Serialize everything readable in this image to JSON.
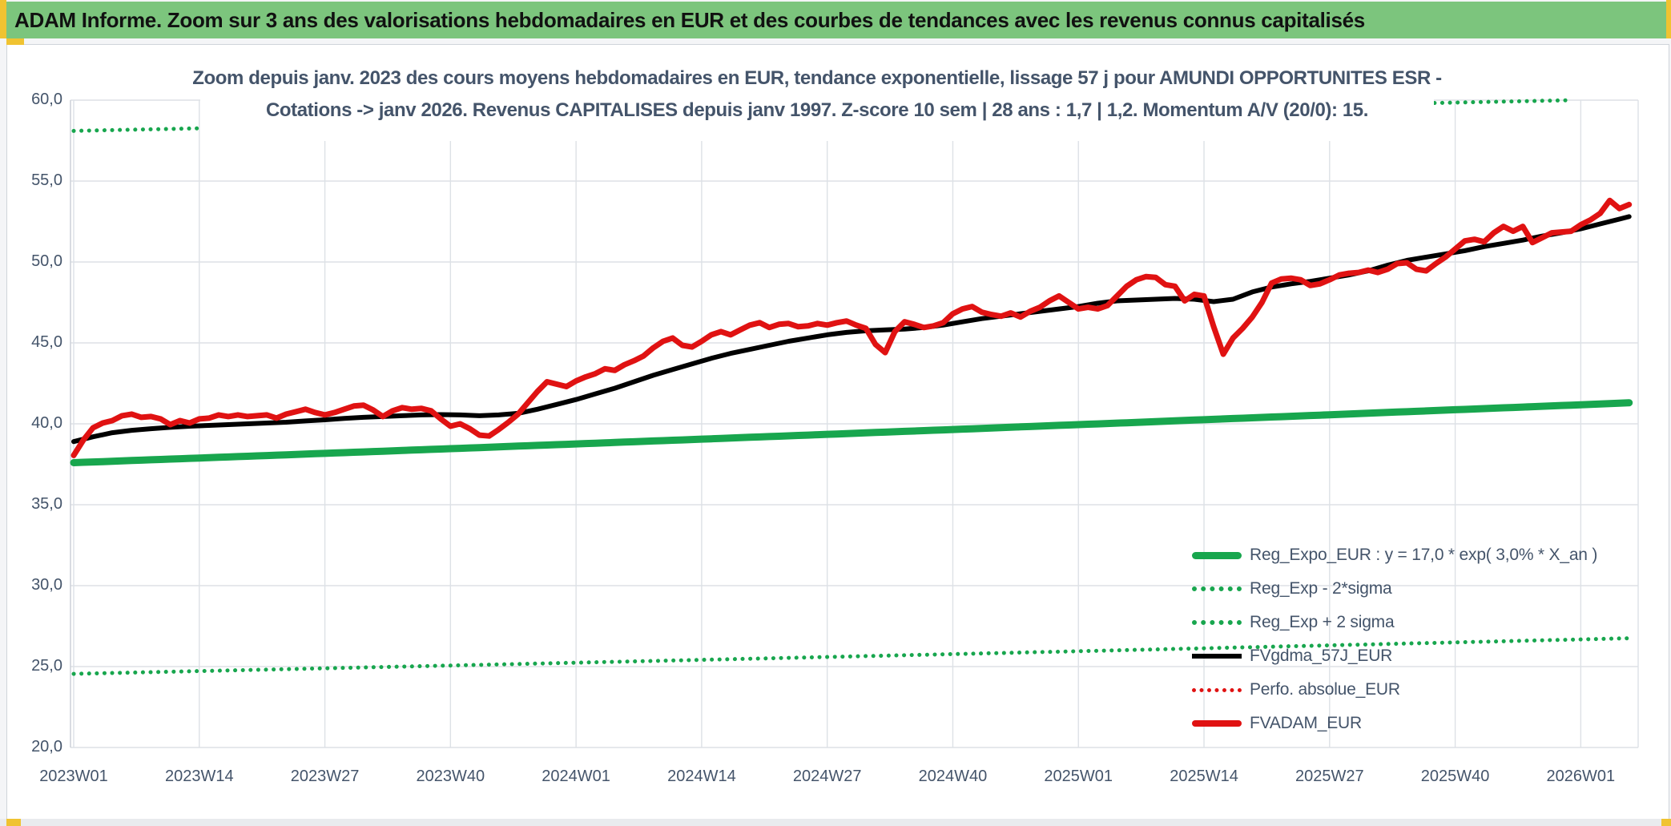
{
  "header": {
    "title": "ADAM Informe. Zoom sur 3 ans des valorisations hebdomadaires en EUR et des courbes de tendances avec les revenus connus capitalisés"
  },
  "chart_data": {
    "type": "line",
    "title_line1": "Zoom depuis janv. 2023 des cours moyens hebdomadaires en EUR, tendance exponentielle, lissage 57 j pour AMUNDI OPPORTUNITES ESR -",
    "title_line2": "Cotations -> janv 2026. Revenus CAPITALISES depuis janv 1997. Z-score 10 sem | 28 ans : 1,7 | 1,2. Momentum A/V (20/0): 15.",
    "ylabel": "",
    "xlabel": "",
    "ylim": [
      20,
      60
    ],
    "grid": true,
    "legend_position": "right-inside",
    "y_ticks": [
      "60,0",
      "55,0",
      "50,0",
      "45,0",
      "40,0",
      "35,0",
      "30,0",
      "25,0",
      "20,0"
    ],
    "y_tick_values": [
      60,
      55,
      50,
      45,
      40,
      35,
      30,
      25,
      20
    ],
    "x_ticks": [
      "2023W01",
      "2023W14",
      "2023W27",
      "2023W40",
      "2024W01",
      "2024W14",
      "2024W27",
      "2024W40",
      "2025W01",
      "2025W14",
      "2025W27",
      "2025W40",
      "2026W01"
    ],
    "x_tick_weeks": [
      0,
      13,
      26,
      39,
      52,
      65,
      78,
      91,
      104,
      117,
      130,
      143,
      156
    ],
    "weeks_total": 161,
    "colors": {
      "green": "#18a64e",
      "red": "#e01212",
      "black": "#000000",
      "gridline": "#dde1e6",
      "text": "#44546a"
    },
    "legend": [
      {
        "label": "Reg_Expo_EUR : y = 17,0 * exp( 3,0% *  X_an )",
        "marker": "green-solid"
      },
      {
        "label": "Reg_Exp - 2*sigma",
        "marker": "green-dotted"
      },
      {
        "label": "Reg_Exp + 2 sigma",
        "marker": "green-dotted"
      },
      {
        "label": "FVgdma_57J_EUR",
        "marker": "black-solid"
      },
      {
        "label": "Perfo. absolue_EUR",
        "marker": "red-dotted"
      },
      {
        "label": "FVADAM_EUR",
        "marker": "red-solid"
      }
    ],
    "series": {
      "reg_expo_eur": {
        "name": "Reg_Expo_EUR",
        "style": "solid",
        "color": "#18a64e",
        "start": 37.6,
        "end": 41.3,
        "growth_pct_per_year": 3.0
      },
      "reg_exp_minus_2sigma": {
        "name": "Reg_Exp - 2*sigma",
        "style": "dotted",
        "color": "#18a64e",
        "start": 24.55,
        "end": 26.75
      },
      "reg_exp_plus_2sigma": {
        "name": "Reg_Exp + 2 sigma",
        "style": "dotted",
        "color": "#18a64e",
        "start": 58.1,
        "end": 60.07,
        "clip_max": 60.0
      },
      "fvgdma_57j_eur": {
        "name": "FVgdma_57J_EUR",
        "style": "solid",
        "color": "#000000",
        "points": [
          [
            0,
            38.9
          ],
          [
            2,
            39.2
          ],
          [
            4,
            39.45
          ],
          [
            6,
            39.6
          ],
          [
            8,
            39.7
          ],
          [
            10,
            39.78
          ],
          [
            12,
            39.85
          ],
          [
            14,
            39.9
          ],
          [
            16,
            39.95
          ],
          [
            18,
            40.0
          ],
          [
            20,
            40.05
          ],
          [
            22,
            40.1
          ],
          [
            24,
            40.18
          ],
          [
            26,
            40.25
          ],
          [
            28,
            40.33
          ],
          [
            30,
            40.4
          ],
          [
            32,
            40.45
          ],
          [
            34,
            40.5
          ],
          [
            36,
            40.55
          ],
          [
            38,
            40.57
          ],
          [
            40,
            40.55
          ],
          [
            42,
            40.5
          ],
          [
            44,
            40.55
          ],
          [
            46,
            40.65
          ],
          [
            48,
            40.9
          ],
          [
            50,
            41.2
          ],
          [
            52,
            41.5
          ],
          [
            54,
            41.85
          ],
          [
            56,
            42.2
          ],
          [
            58,
            42.6
          ],
          [
            60,
            43.0
          ],
          [
            62,
            43.35
          ],
          [
            64,
            43.7
          ],
          [
            66,
            44.05
          ],
          [
            68,
            44.35
          ],
          [
            70,
            44.6
          ],
          [
            72,
            44.85
          ],
          [
            74,
            45.1
          ],
          [
            76,
            45.3
          ],
          [
            78,
            45.5
          ],
          [
            80,
            45.65
          ],
          [
            82,
            45.75
          ],
          [
            84,
            45.8
          ],
          [
            86,
            45.85
          ],
          [
            88,
            45.95
          ],
          [
            90,
            46.1
          ],
          [
            92,
            46.3
          ],
          [
            94,
            46.5
          ],
          [
            96,
            46.65
          ],
          [
            98,
            46.8
          ],
          [
            100,
            46.95
          ],
          [
            102,
            47.1
          ],
          [
            104,
            47.25
          ],
          [
            106,
            47.45
          ],
          [
            108,
            47.6
          ],
          [
            110,
            47.65
          ],
          [
            112,
            47.7
          ],
          [
            114,
            47.75
          ],
          [
            116,
            47.7
          ],
          [
            118,
            47.55
          ],
          [
            120,
            47.7
          ],
          [
            122,
            48.15
          ],
          [
            124,
            48.45
          ],
          [
            126,
            48.65
          ],
          [
            128,
            48.8
          ],
          [
            130,
            49.0
          ],
          [
            132,
            49.2
          ],
          [
            134,
            49.45
          ],
          [
            136,
            49.8
          ],
          [
            138,
            50.1
          ],
          [
            140,
            50.3
          ],
          [
            142,
            50.5
          ],
          [
            144,
            50.7
          ],
          [
            146,
            50.95
          ],
          [
            148,
            51.15
          ],
          [
            150,
            51.35
          ],
          [
            152,
            51.6
          ],
          [
            154,
            51.8
          ],
          [
            156,
            52.05
          ],
          [
            158,
            52.35
          ],
          [
            160,
            52.65
          ],
          [
            161,
            52.8
          ]
        ]
      },
      "fvadam_eur": {
        "name": "FVADAM_EUR",
        "style": "solid",
        "color": "#e01212",
        "values": [
          38.05,
          39.0,
          39.75,
          40.05,
          40.2,
          40.5,
          40.6,
          40.4,
          40.45,
          40.3,
          39.95,
          40.2,
          40.05,
          40.3,
          40.35,
          40.55,
          40.45,
          40.55,
          40.45,
          40.5,
          40.55,
          40.35,
          40.6,
          40.75,
          40.9,
          40.7,
          40.55,
          40.7,
          40.9,
          41.1,
          41.15,
          40.85,
          40.45,
          40.8,
          41.0,
          40.9,
          40.95,
          40.8,
          40.3,
          39.85,
          40.0,
          39.7,
          39.3,
          39.25,
          39.65,
          40.1,
          40.6,
          41.3,
          42.0,
          42.6,
          42.45,
          42.3,
          42.65,
          42.9,
          43.1,
          43.4,
          43.3,
          43.65,
          43.9,
          44.2,
          44.7,
          45.1,
          45.3,
          44.85,
          44.75,
          45.1,
          45.5,
          45.7,
          45.5,
          45.8,
          46.1,
          46.25,
          45.95,
          46.15,
          46.2,
          46.0,
          46.05,
          46.2,
          46.1,
          46.25,
          46.35,
          46.1,
          45.9,
          44.9,
          44.4,
          45.7,
          46.3,
          46.15,
          45.95,
          46.05,
          46.25,
          46.8,
          47.1,
          47.25,
          46.9,
          46.75,
          46.65,
          46.85,
          46.6,
          46.95,
          47.2,
          47.6,
          47.9,
          47.5,
          47.1,
          47.2,
          47.1,
          47.3,
          47.9,
          48.5,
          48.9,
          49.1,
          49.05,
          48.6,
          48.5,
          47.6,
          48.0,
          47.9,
          46.0,
          44.3,
          45.3,
          45.9,
          46.6,
          47.5,
          48.7,
          48.95,
          49.0,
          48.9,
          48.55,
          48.65,
          48.9,
          49.2,
          49.3,
          49.35,
          49.5,
          49.35,
          49.55,
          49.9,
          49.95,
          49.55,
          49.45,
          49.9,
          50.3,
          50.8,
          51.3,
          51.4,
          51.25,
          51.8,
          52.2,
          51.9,
          52.2,
          51.2,
          51.5,
          51.8,
          51.85,
          51.9,
          52.3,
          52.6,
          53.0,
          53.8,
          53.3,
          53.55
        ]
      },
      "perfo_absolue_eur": {
        "name": "Perfo. absolue_EUR",
        "style": "dotted",
        "color": "#e01212",
        "plotted_under_fvadam": true
      }
    }
  }
}
